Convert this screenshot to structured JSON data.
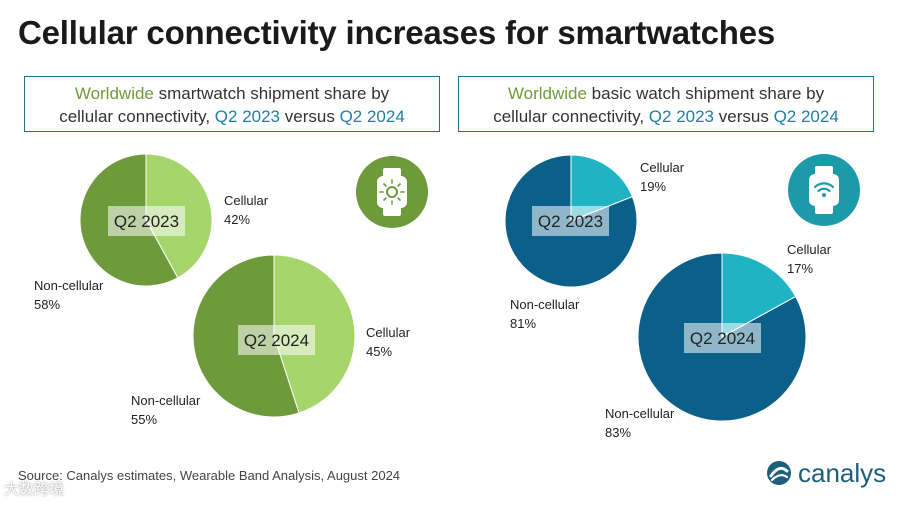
{
  "title": "Cellular connectivity increases for smartwatches",
  "left_subtitle": {
    "prefix": "Worldwide",
    "middle": " smartwatch shipment share by",
    "line2_start": "cellular connectivity, ",
    "period_a": "Q2 2023",
    "versus": " versus ",
    "period_b": "Q2 2024"
  },
  "right_subtitle": {
    "prefix": "Worldwide",
    "middle": " basic watch shipment share by",
    "line2_start": "cellular connectivity, ",
    "period_a": "Q2 2023",
    "versus": " versus ",
    "period_b": "Q2 2024"
  },
  "colors": {
    "smart_cellular": "#a6d66b",
    "smart_noncellular": "#6e9a3b",
    "basic_cellular": "#1fb3c4",
    "basic_noncellular": "#0a6088",
    "smart_icon_bg": "#6e9a3b",
    "basic_icon_bg": "#1c9aa9"
  },
  "icons": {
    "smartwatch": "smartwatch-icon",
    "basic_watch": "basic-watch-wifi-icon"
  },
  "chart_data": [
    {
      "type": "pie",
      "title": "Worldwide smartwatch shipment share by cellular connectivity, Q2 2023 versus Q2 2024",
      "pies": [
        {
          "period": "Q2 2023",
          "slices": [
            {
              "label": "Cellular",
              "value": 42
            },
            {
              "label": "Non-cellular",
              "value": 58
            }
          ]
        },
        {
          "period": "Q2 2024",
          "slices": [
            {
              "label": "Cellular",
              "value": 45
            },
            {
              "label": "Non-cellular",
              "value": 55
            }
          ]
        }
      ]
    },
    {
      "type": "pie",
      "title": "Worldwide basic watch shipment share by cellular connectivity, Q2 2023 versus Q2 2024",
      "pies": [
        {
          "period": "Q2 2023",
          "slices": [
            {
              "label": "Cellular",
              "value": 19
            },
            {
              "label": "Non-cellular",
              "value": 81
            }
          ]
        },
        {
          "period": "Q2 2024",
          "slices": [
            {
              "label": "Cellular",
              "value": 17
            },
            {
              "label": "Non-cellular",
              "value": 83
            }
          ]
        }
      ]
    }
  ],
  "source": "Source:  Canalys estimates, Wearable Band Analysis, August 2024",
  "logo": "canalys",
  "watermark": "大数跨境"
}
